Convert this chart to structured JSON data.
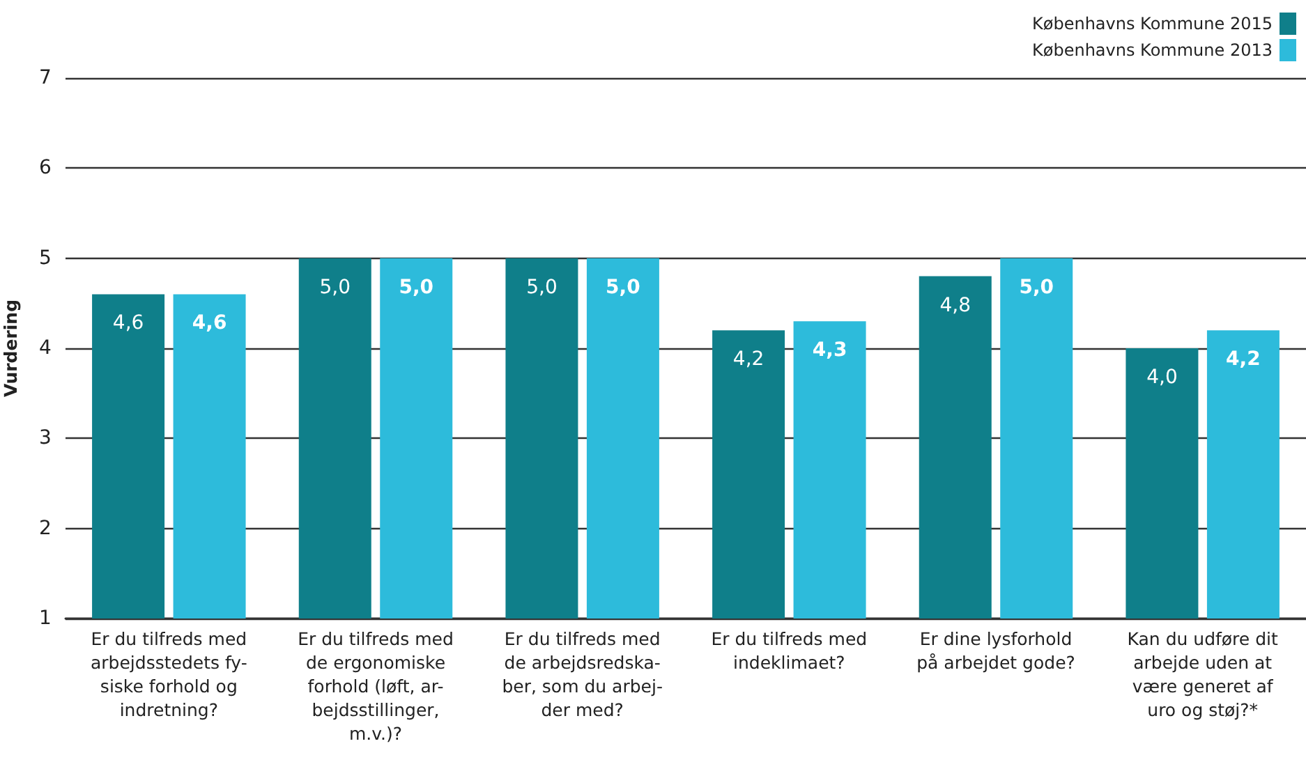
{
  "chart_data": {
    "type": "bar",
    "ylabel": "Vurdering",
    "categories": [
      "Er du tilfreds med\narbejdsstedets fy-\nsiske forhold og\nindretning?",
      "Er du tilfreds med\nde ergonomiske\nforhold (løft, ar-\nbejdsstillinger,\nm.v.)?",
      "Er du tilfreds med\nde arbejdsredska-\nber, som du arbej-\nder med?",
      "Er du tilfreds med\nindeklimaet?",
      "Er dine lysforhold\npå arbejdet gode?",
      "Kan du udføre dit\narbejde uden at\nvære generet af\nuro og støj?*"
    ],
    "series": [
      {
        "name": "Københavns Kommune 2015",
        "color": "#0f7f8a",
        "values": [
          4.6,
          5.0,
          5.0,
          4.2,
          4.8,
          4.0
        ],
        "value_labels": [
          "4,6",
          "5,0",
          "5,0",
          "4,2",
          "4,8",
          "4,0"
        ]
      },
      {
        "name": "Københavns Kommune 2013",
        "color": "#2dbbdb",
        "values": [
          4.6,
          5.0,
          5.0,
          4.3,
          5.0,
          4.2
        ],
        "value_labels": [
          "4,6",
          "5,0",
          "5,0",
          "4,3",
          "5,0",
          "4,2"
        ]
      }
    ],
    "ylim": [
      1,
      7
    ],
    "yticks": [
      1,
      2,
      3,
      4,
      5,
      6,
      7
    ],
    "grid": "y",
    "legend": "top right"
  }
}
